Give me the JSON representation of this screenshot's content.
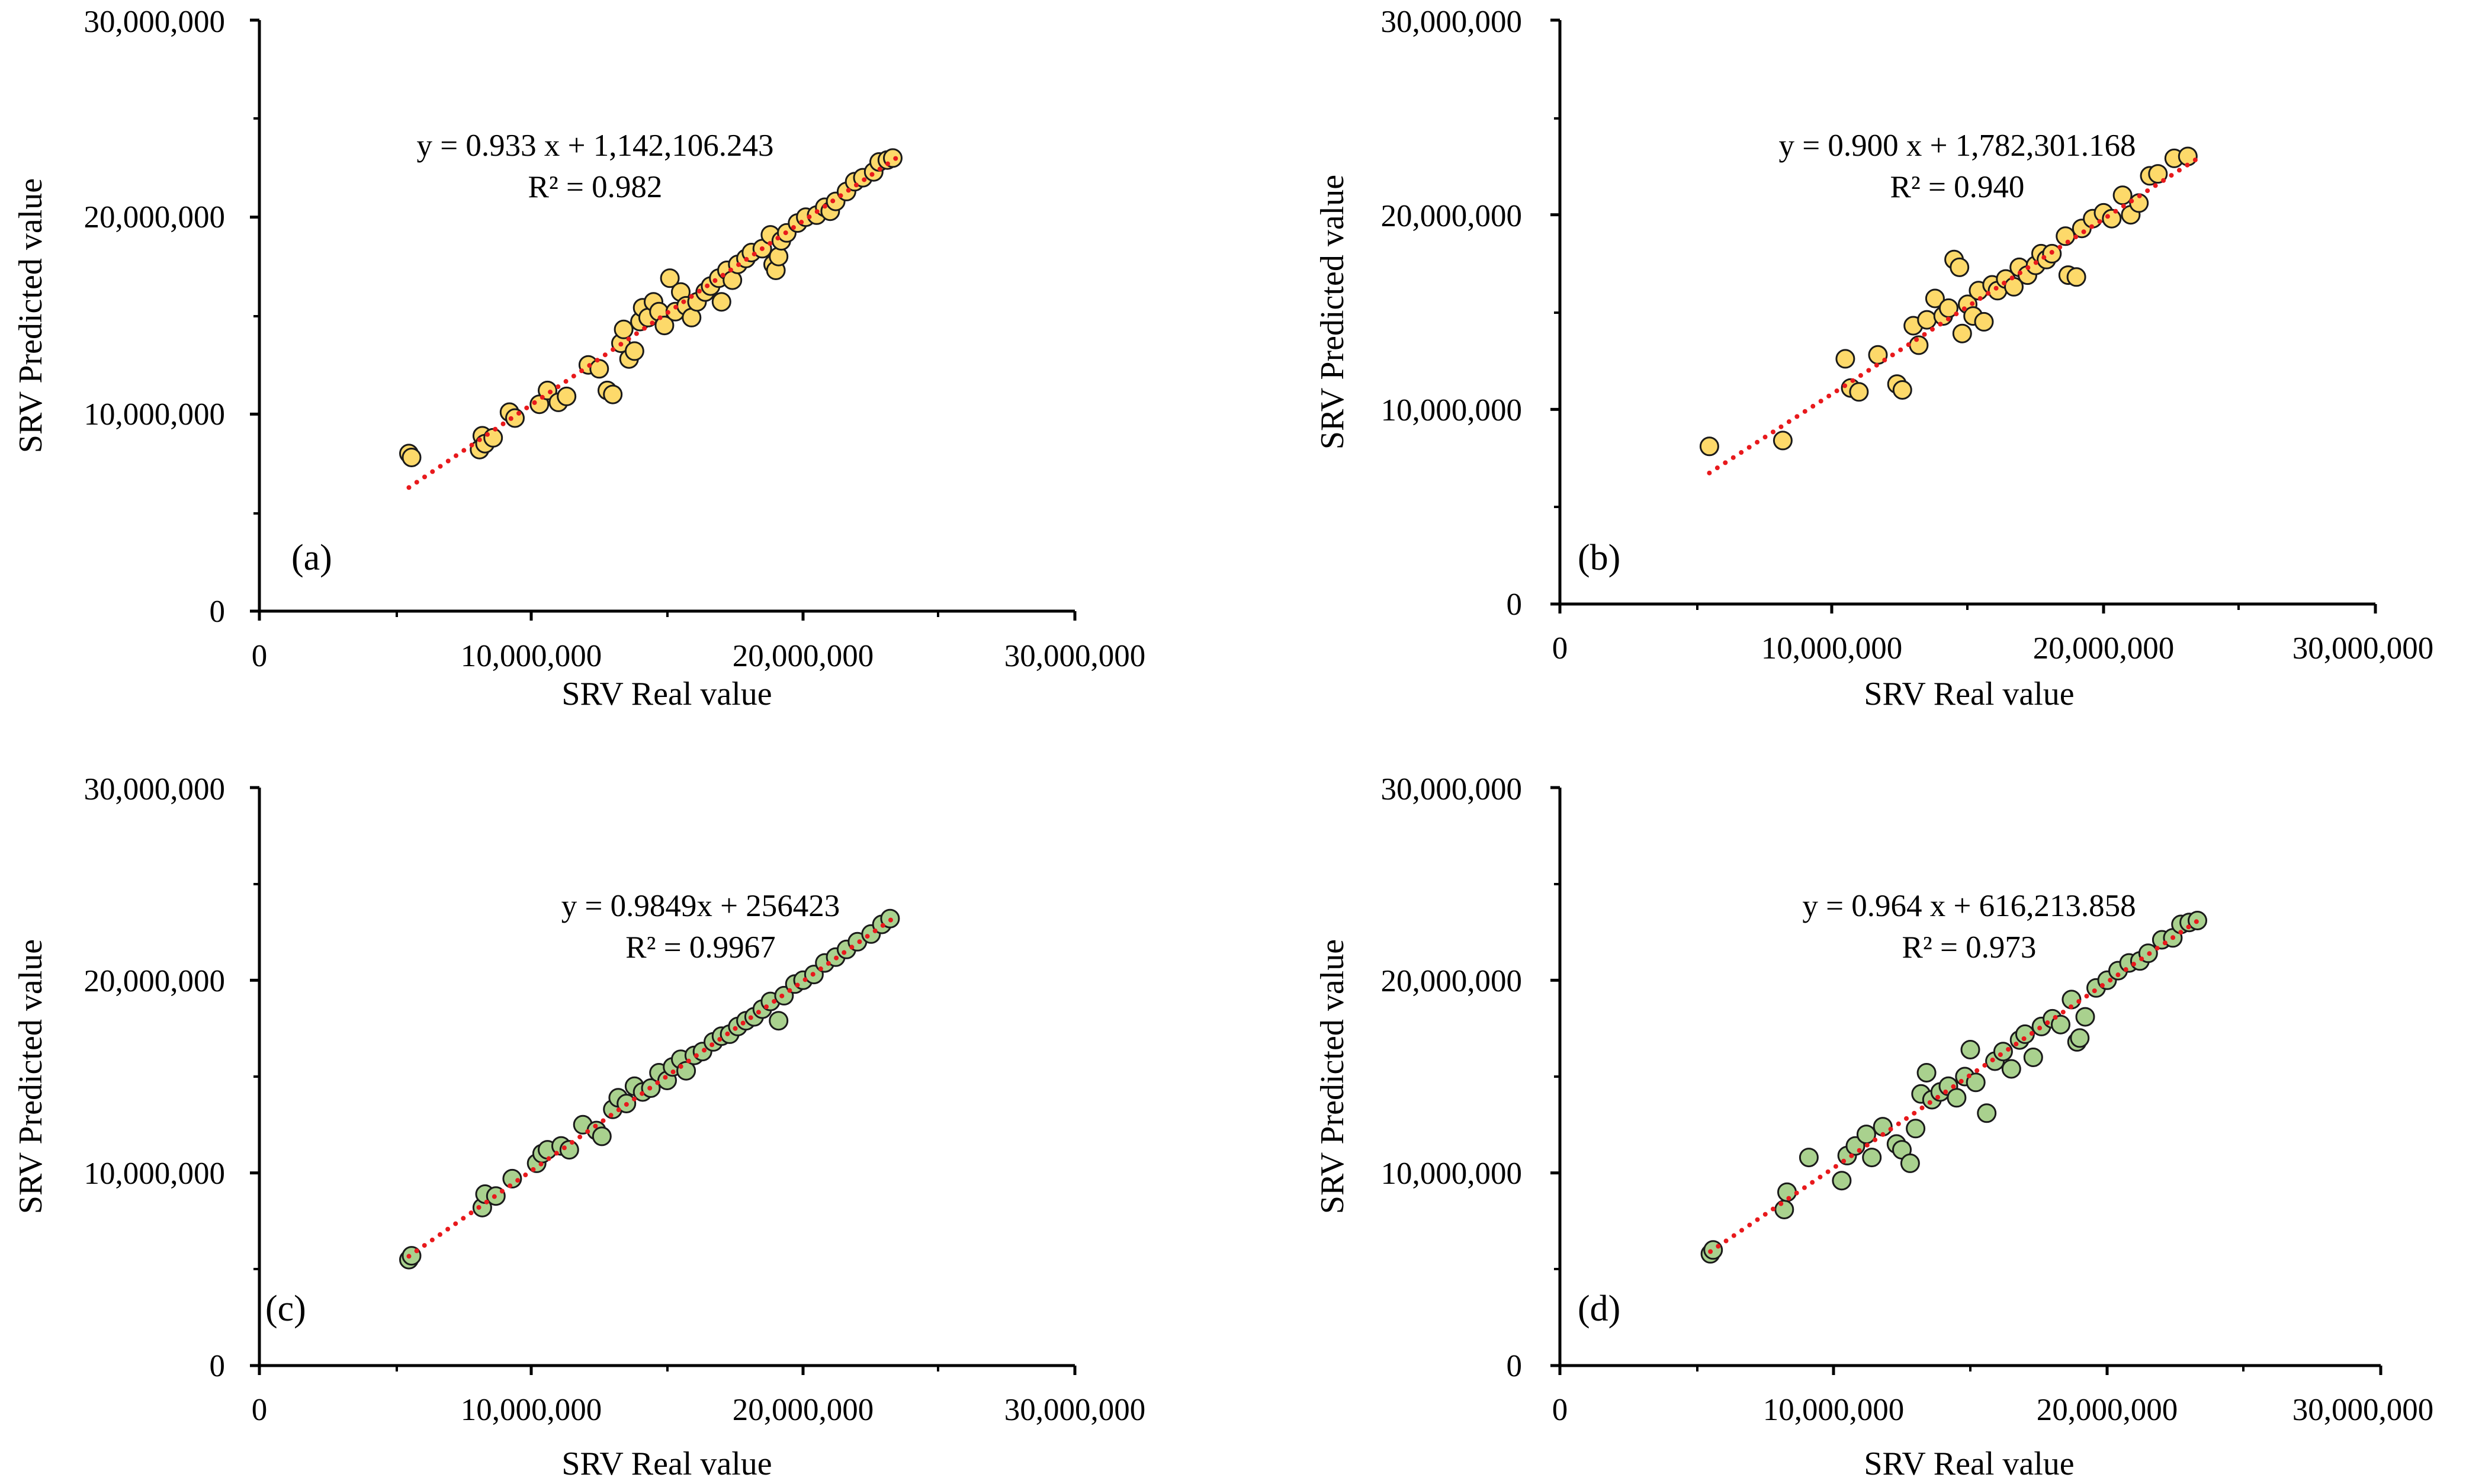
{
  "chart_data": [
    {
      "type": "scatter",
      "panel_label": "(a)",
      "xlabel": "SRV Real value",
      "ylabel": "SRV Predicted value",
      "xlim": [
        0,
        30000000
      ],
      "ylim": [
        0,
        30000000
      ],
      "x_tick_labels": [
        "0",
        "10,000,000",
        "20,000,000",
        "30,000,000"
      ],
      "y_tick_labels": [
        "0",
        "10,000,000",
        "20,000,000",
        "30,000,000"
      ],
      "equation": "y = 0.933 x + 1,142,106.243",
      "r_squared": "R² = 0.982",
      "trendline": {
        "slope": 0.933,
        "intercept": 1142106.243,
        "x_range": [
          5500000,
          23500000
        ]
      },
      "marker_color": "#fdd96a",
      "points": [
        [
          5500000,
          8000000
        ],
        [
          5600000,
          7800000
        ],
        [
          8100000,
          8200000
        ],
        [
          8200000,
          8900000
        ],
        [
          8300000,
          8500000
        ],
        [
          8600000,
          8800000
        ],
        [
          9200000,
          10100000
        ],
        [
          9400000,
          9800000
        ],
        [
          10300000,
          10500000
        ],
        [
          10600000,
          11200000
        ],
        [
          11000000,
          10600000
        ],
        [
          11300000,
          10900000
        ],
        [
          12100000,
          12500000
        ],
        [
          12500000,
          12300000
        ],
        [
          12800000,
          11200000
        ],
        [
          13000000,
          11000000
        ],
        [
          13300000,
          13600000
        ],
        [
          13400000,
          14300000
        ],
        [
          13600000,
          12800000
        ],
        [
          13800000,
          13200000
        ],
        [
          14000000,
          14700000
        ],
        [
          14100000,
          15400000
        ],
        [
          14300000,
          14900000
        ],
        [
          14500000,
          15700000
        ],
        [
          14700000,
          15200000
        ],
        [
          14900000,
          14500000
        ],
        [
          15100000,
          16900000
        ],
        [
          15300000,
          15200000
        ],
        [
          15500000,
          16200000
        ],
        [
          15700000,
          15500000
        ],
        [
          15900000,
          14900000
        ],
        [
          16100000,
          15700000
        ],
        [
          16400000,
          16200000
        ],
        [
          16600000,
          16500000
        ],
        [
          16900000,
          16900000
        ],
        [
          17000000,
          15700000
        ],
        [
          17200000,
          17300000
        ],
        [
          17400000,
          16800000
        ],
        [
          17600000,
          17600000
        ],
        [
          17900000,
          17900000
        ],
        [
          18100000,
          18200000
        ],
        [
          18500000,
          18400000
        ],
        [
          18800000,
          19100000
        ],
        [
          18900000,
          17600000
        ],
        [
          19000000,
          17300000
        ],
        [
          19100000,
          18000000
        ],
        [
          19200000,
          18800000
        ],
        [
          19400000,
          19200000
        ],
        [
          19800000,
          19700000
        ],
        [
          20100000,
          20000000
        ],
        [
          20500000,
          20100000
        ],
        [
          20800000,
          20500000
        ],
        [
          21000000,
          20300000
        ],
        [
          21200000,
          20800000
        ],
        [
          21600000,
          21300000
        ],
        [
          21900000,
          21800000
        ],
        [
          22200000,
          22000000
        ],
        [
          22600000,
          22300000
        ],
        [
          22800000,
          22800000
        ],
        [
          23100000,
          22900000
        ],
        [
          23300000,
          23000000
        ]
      ]
    },
    {
      "type": "scatter",
      "panel_label": "(b)",
      "xlabel": "SRV Real value",
      "ylabel": "SRV Predicted value",
      "xlim": [
        0,
        30000000
      ],
      "ylim": [
        0,
        30000000
      ],
      "x_tick_labels": [
        "0",
        "10,000,000",
        "20,000,000",
        "30,000,000"
      ],
      "y_tick_labels": [
        "0",
        "10,000,000",
        "20,000,000",
        "30,000,000"
      ],
      "equation": "y = 0.900 x + 1,782,301.168",
      "r_squared": "R² = 0.940",
      "trendline": {
        "slope": 0.9,
        "intercept": 1782301.168,
        "x_range": [
          5500000,
          23500000
        ]
      },
      "marker_color": "#fdd96a",
      "points": [
        [
          5500000,
          8100000
        ],
        [
          8200000,
          8400000
        ],
        [
          10500000,
          12600000
        ],
        [
          10700000,
          11100000
        ],
        [
          11000000,
          10900000
        ],
        [
          11700000,
          12800000
        ],
        [
          12400000,
          11300000
        ],
        [
          12600000,
          11000000
        ],
        [
          13000000,
          14300000
        ],
        [
          13200000,
          13300000
        ],
        [
          13500000,
          14600000
        ],
        [
          13800000,
          15700000
        ],
        [
          14100000,
          14800000
        ],
        [
          14300000,
          15200000
        ],
        [
          14500000,
          17700000
        ],
        [
          14700000,
          17300000
        ],
        [
          14800000,
          13900000
        ],
        [
          15000000,
          15400000
        ],
        [
          15200000,
          14800000
        ],
        [
          15400000,
          16100000
        ],
        [
          15600000,
          14500000
        ],
        [
          15900000,
          16400000
        ],
        [
          16100000,
          16100000
        ],
        [
          16400000,
          16700000
        ],
        [
          16700000,
          16300000
        ],
        [
          16900000,
          17300000
        ],
        [
          17200000,
          16900000
        ],
        [
          17500000,
          17400000
        ],
        [
          17700000,
          18000000
        ],
        [
          17900000,
          17700000
        ],
        [
          18100000,
          18000000
        ],
        [
          18600000,
          18900000
        ],
        [
          18700000,
          16900000
        ],
        [
          19000000,
          16800000
        ],
        [
          19200000,
          19300000
        ],
        [
          19600000,
          19800000
        ],
        [
          20000000,
          20100000
        ],
        [
          20300000,
          19800000
        ],
        [
          20700000,
          21000000
        ],
        [
          21000000,
          20000000
        ],
        [
          21300000,
          20600000
        ],
        [
          21700000,
          22000000
        ],
        [
          22000000,
          22100000
        ],
        [
          22600000,
          22900000
        ],
        [
          23100000,
          23000000
        ]
      ]
    },
    {
      "type": "scatter",
      "panel_label": "(c)",
      "xlabel": "SRV Real value",
      "ylabel": "SRV Predicted value",
      "xlim": [
        0,
        30000000
      ],
      "ylim": [
        0,
        30000000
      ],
      "x_tick_labels": [
        "0",
        "10,000,000",
        "20,000,000",
        "30,000,000"
      ],
      "y_tick_labels": [
        "0",
        "10,000,000",
        "20,000,000",
        "30,000,000"
      ],
      "equation": "y = 0.9849x + 256423",
      "r_squared": "R² = 0.9967",
      "trendline": {
        "slope": 0.9849,
        "intercept": 256423,
        "x_range": [
          5500000,
          23500000
        ]
      },
      "marker_color": "#a9d18e",
      "points": [
        [
          5500000,
          5500000
        ],
        [
          5600000,
          5700000
        ],
        [
          8200000,
          8200000
        ],
        [
          8300000,
          8900000
        ],
        [
          8700000,
          8800000
        ],
        [
          9300000,
          9700000
        ],
        [
          10200000,
          10500000
        ],
        [
          10400000,
          11000000
        ],
        [
          10600000,
          11200000
        ],
        [
          11100000,
          11400000
        ],
        [
          11400000,
          11200000
        ],
        [
          11900000,
          12500000
        ],
        [
          12400000,
          12200000
        ],
        [
          12600000,
          11900000
        ],
        [
          13000000,
          13300000
        ],
        [
          13200000,
          13900000
        ],
        [
          13500000,
          13600000
        ],
        [
          13800000,
          14500000
        ],
        [
          14100000,
          14200000
        ],
        [
          14400000,
          14400000
        ],
        [
          14700000,
          15200000
        ],
        [
          15000000,
          14800000
        ],
        [
          15200000,
          15500000
        ],
        [
          15500000,
          15900000
        ],
        [
          15700000,
          15300000
        ],
        [
          16000000,
          16100000
        ],
        [
          16300000,
          16300000
        ],
        [
          16700000,
          16800000
        ],
        [
          17000000,
          17100000
        ],
        [
          17300000,
          17200000
        ],
        [
          17600000,
          17600000
        ],
        [
          17900000,
          17900000
        ],
        [
          18200000,
          18100000
        ],
        [
          18500000,
          18500000
        ],
        [
          18800000,
          18900000
        ],
        [
          19100000,
          17900000
        ],
        [
          19300000,
          19200000
        ],
        [
          19700000,
          19800000
        ],
        [
          20000000,
          20000000
        ],
        [
          20400000,
          20300000
        ],
        [
          20800000,
          20900000
        ],
        [
          21200000,
          21200000
        ],
        [
          21600000,
          21600000
        ],
        [
          22000000,
          22000000
        ],
        [
          22500000,
          22400000
        ],
        [
          22900000,
          22900000
        ],
        [
          23200000,
          23200000
        ]
      ]
    },
    {
      "type": "scatter",
      "panel_label": "(d)",
      "xlabel": "SRV Real value",
      "ylabel": "SRV Predicted value",
      "xlim": [
        0,
        30000000
      ],
      "ylim": [
        0,
        30000000
      ],
      "x_tick_labels": [
        "0",
        "10,000,000",
        "20,000,000",
        "30,000,000"
      ],
      "y_tick_labels": [
        "0",
        "10,000,000",
        "20,000,000",
        "30,000,000"
      ],
      "equation": "y = 0.964 x + 616,213.858",
      "r_squared": "R² = 0.973",
      "trendline": {
        "slope": 0.964,
        "intercept": 616213.858,
        "x_range": [
          5500000,
          23500000
        ]
      },
      "marker_color": "#a9d18e",
      "points": [
        [
          5500000,
          5800000
        ],
        [
          5600000,
          6000000
        ],
        [
          8200000,
          8100000
        ],
        [
          8300000,
          9000000
        ],
        [
          9100000,
          10800000
        ],
        [
          10300000,
          9600000
        ],
        [
          10500000,
          10900000
        ],
        [
          10800000,
          11400000
        ],
        [
          11200000,
          12000000
        ],
        [
          11400000,
          10800000
        ],
        [
          11800000,
          12400000
        ],
        [
          12300000,
          11500000
        ],
        [
          12500000,
          11200000
        ],
        [
          12800000,
          10500000
        ],
        [
          13000000,
          12300000
        ],
        [
          13200000,
          14100000
        ],
        [
          13400000,
          15200000
        ],
        [
          13600000,
          13800000
        ],
        [
          13900000,
          14200000
        ],
        [
          14200000,
          14500000
        ],
        [
          14500000,
          13900000
        ],
        [
          14800000,
          15000000
        ],
        [
          15000000,
          16400000
        ],
        [
          15200000,
          14700000
        ],
        [
          15600000,
          13100000
        ],
        [
          15900000,
          15800000
        ],
        [
          16200000,
          16300000
        ],
        [
          16500000,
          15400000
        ],
        [
          16800000,
          16900000
        ],
        [
          17000000,
          17200000
        ],
        [
          17300000,
          16000000
        ],
        [
          17600000,
          17600000
        ],
        [
          18000000,
          18000000
        ],
        [
          18300000,
          17700000
        ],
        [
          18700000,
          19000000
        ],
        [
          18900000,
          16800000
        ],
        [
          19000000,
          17000000
        ],
        [
          19200000,
          18100000
        ],
        [
          19600000,
          19600000
        ],
        [
          20000000,
          20000000
        ],
        [
          20400000,
          20500000
        ],
        [
          20800000,
          20900000
        ],
        [
          21200000,
          21000000
        ],
        [
          21500000,
          21400000
        ],
        [
          22000000,
          22100000
        ],
        [
          22400000,
          22200000
        ],
        [
          22700000,
          22900000
        ],
        [
          23000000,
          23000000
        ],
        [
          23300000,
          23100000
        ]
      ]
    }
  ]
}
